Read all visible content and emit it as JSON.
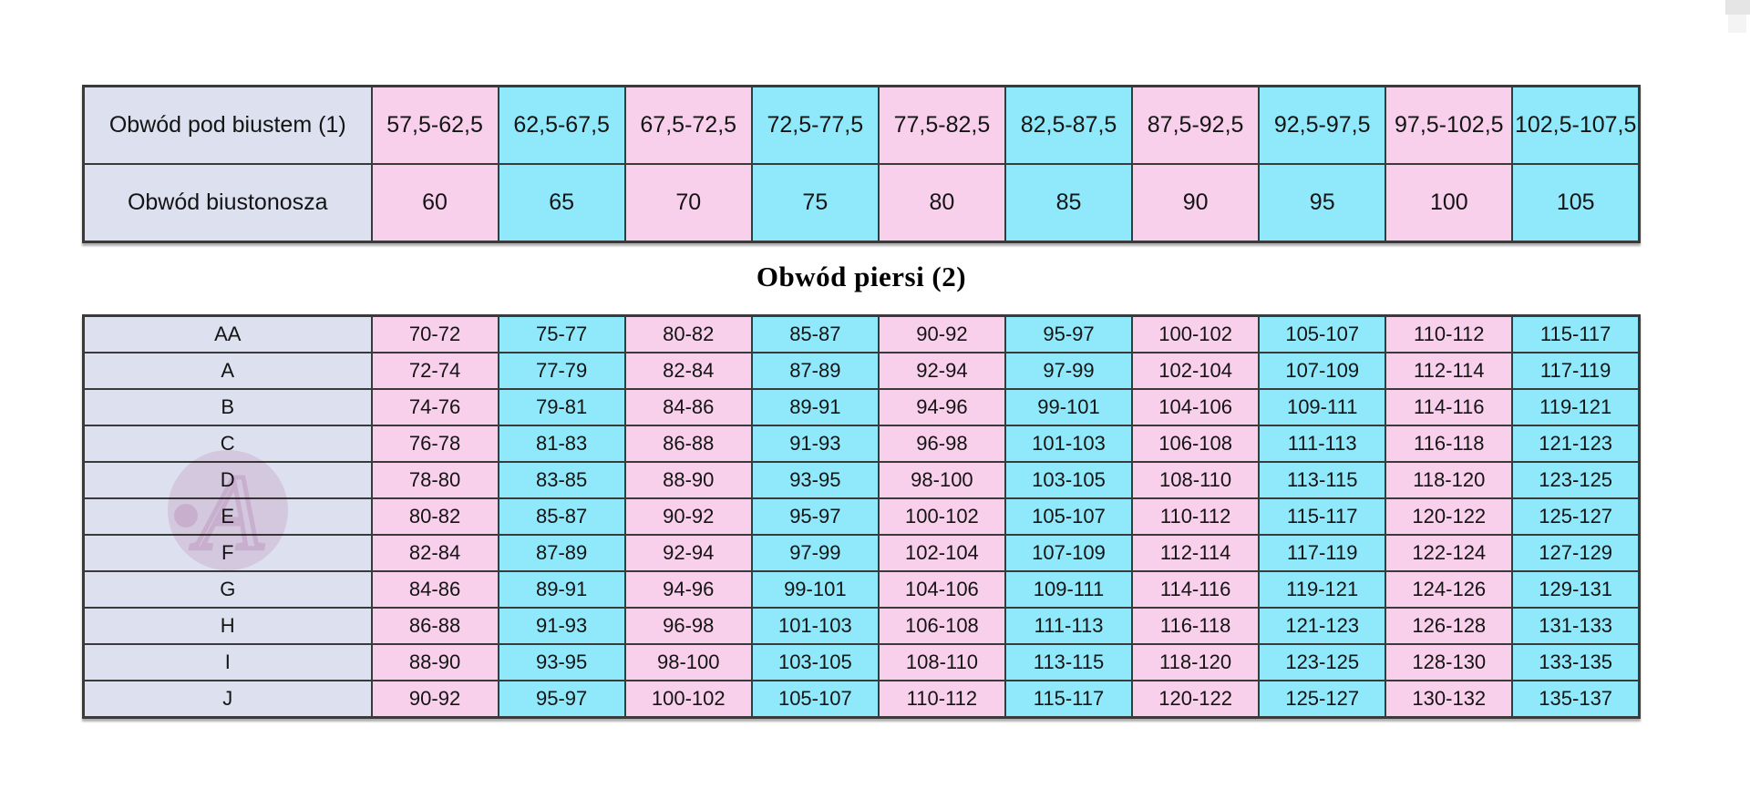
{
  "colors": {
    "cell_pink": "#F8D0EB",
    "cell_cyan": "#8FE9FA",
    "cell_lavender": "#DCE0EF",
    "table_border": "#3A3A3A",
    "watermark_pink": "#EECADE"
  },
  "band_table": {
    "rows": [
      {
        "label": "Obwód pod biustem (1)",
        "values": [
          "57,5-62,5",
          "62,5-67,5",
          "67,5-72,5",
          "72,5-77,5",
          "77,5-82,5",
          "82,5-87,5",
          "87,5-92,5",
          "92,5-97,5",
          "97,5-102,5",
          "102,5-107,5"
        ]
      },
      {
        "label": "Obwód biustonosza",
        "values": [
          "60",
          "65",
          "70",
          "75",
          "80",
          "85",
          "90",
          "95",
          "100",
          "105"
        ]
      }
    ]
  },
  "section_title": "Obwód piersi (2)",
  "cup_table": {
    "rows": [
      {
        "label": "AA",
        "values": [
          "70-72",
          "75-77",
          "80-82",
          "85-87",
          "90-92",
          "95-97",
          "100-102",
          "105-107",
          "110-112",
          "115-117"
        ]
      },
      {
        "label": "A",
        "values": [
          "72-74",
          "77-79",
          "82-84",
          "87-89",
          "92-94",
          "97-99",
          "102-104",
          "107-109",
          "112-114",
          "117-119"
        ]
      },
      {
        "label": "B",
        "values": [
          "74-76",
          "79-81",
          "84-86",
          "89-91",
          "94-96",
          "99-101",
          "104-106",
          "109-111",
          "114-116",
          "119-121"
        ]
      },
      {
        "label": "C",
        "values": [
          "76-78",
          "81-83",
          "86-88",
          "91-93",
          "96-98",
          "101-103",
          "106-108",
          "111-113",
          "116-118",
          "121-123"
        ]
      },
      {
        "label": "D",
        "values": [
          "78-80",
          "83-85",
          "88-90",
          "93-95",
          "98-100",
          "103-105",
          "108-110",
          "113-115",
          "118-120",
          "123-125"
        ]
      },
      {
        "label": "E",
        "values": [
          "80-82",
          "85-87",
          "90-92",
          "95-97",
          "100-102",
          "105-107",
          "110-112",
          "115-117",
          "120-122",
          "125-127"
        ]
      },
      {
        "label": "F",
        "values": [
          "82-84",
          "87-89",
          "92-94",
          "97-99",
          "102-104",
          "107-109",
          "112-114",
          "117-119",
          "122-124",
          "127-129"
        ]
      },
      {
        "label": "G",
        "values": [
          "84-86",
          "89-91",
          "94-96",
          "99-101",
          "104-106",
          "109-111",
          "114-116",
          "119-121",
          "124-126",
          "129-131"
        ]
      },
      {
        "label": "H",
        "values": [
          "86-88",
          "91-93",
          "96-98",
          "101-103",
          "106-108",
          "111-113",
          "116-118",
          "121-123",
          "126-128",
          "131-133"
        ]
      },
      {
        "label": "I",
        "values": [
          "88-90",
          "93-95",
          "98-100",
          "103-105",
          "108-110",
          "113-115",
          "118-120",
          "123-125",
          "128-130",
          "133-135"
        ]
      },
      {
        "label": "J",
        "values": [
          "90-92",
          "95-97",
          "100-102",
          "105-107",
          "110-112",
          "115-117",
          "120-122",
          "125-127",
          "130-132",
          "135-137"
        ]
      }
    ]
  },
  "icons": {
    "watermark": "brand-watermark"
  }
}
